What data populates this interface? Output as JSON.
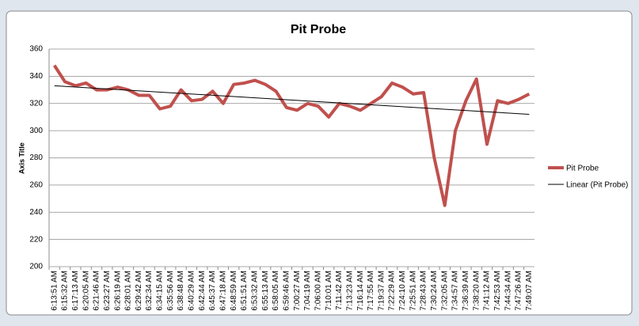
{
  "chart_data": {
    "type": "line",
    "title": "Pit Probe",
    "y_label": "Axis Title",
    "categories": [
      "6:13:51 AM",
      "6:15:32 AM",
      "6:17:13 AM",
      "6:20:05 AM",
      "6:21:46 AM",
      "6:23:27 AM",
      "6:26:19 AM",
      "6:28:01 AM",
      "6:29:42 AM",
      "6:32:34 AM",
      "6:34:15 AM",
      "6:35:56 AM",
      "6:38:48 AM",
      "6:40:29 AM",
      "6:42:44 AM",
      "6:45:37 AM",
      "6:47:18 AM",
      "6:48:59 AM",
      "6:51:51 AM",
      "6:53:32 AM",
      "6:55:13 AM",
      "6:58:05 AM",
      "6:59:46 AM",
      "7:00:27 AM",
      "7:04:19 AM",
      "7:06:00 AM",
      "7:10:01 AM",
      "7:11:42 AM",
      "7:13:23 AM",
      "7:16:14 AM",
      "7:17:55 AM",
      "7:19:37 AM",
      "7:22:29 AM",
      "7:24:10 AM",
      "7:25:51 AM",
      "7:28:43 AM",
      "7:30:24 AM",
      "7:32:05 AM",
      "7:34:57 AM",
      "7:36:39 AM",
      "7:38:20 AM",
      "7:41:12 AM",
      "7:42:53 AM",
      "7:44:34 AM",
      "7:47:26 AM",
      "7:49:07 AM"
    ],
    "series": [
      {
        "name": "Pit Probe",
        "color": "#c0504d",
        "values": [
          348,
          336,
          333,
          335,
          330,
          330,
          332,
          330,
          326,
          326,
          316,
          318,
          330,
          322,
          323,
          329,
          320,
          334,
          335,
          337,
          334,
          329,
          317,
          315,
          320,
          318,
          310,
          320,
          318,
          315,
          320,
          325,
          335,
          332,
          327,
          328,
          280,
          245,
          300,
          322,
          338,
          290,
          322,
          320,
          323,
          327
        ]
      }
    ],
    "trendline": {
      "name": "Linear (Pit Probe)",
      "color": "#000000",
      "values": [
        333,
        312
      ]
    },
    "ylim": [
      200,
      360
    ],
    "yticks": [
      200,
      220,
      240,
      260,
      280,
      300,
      320,
      340,
      360
    ],
    "grid": true,
    "legend": "right"
  }
}
